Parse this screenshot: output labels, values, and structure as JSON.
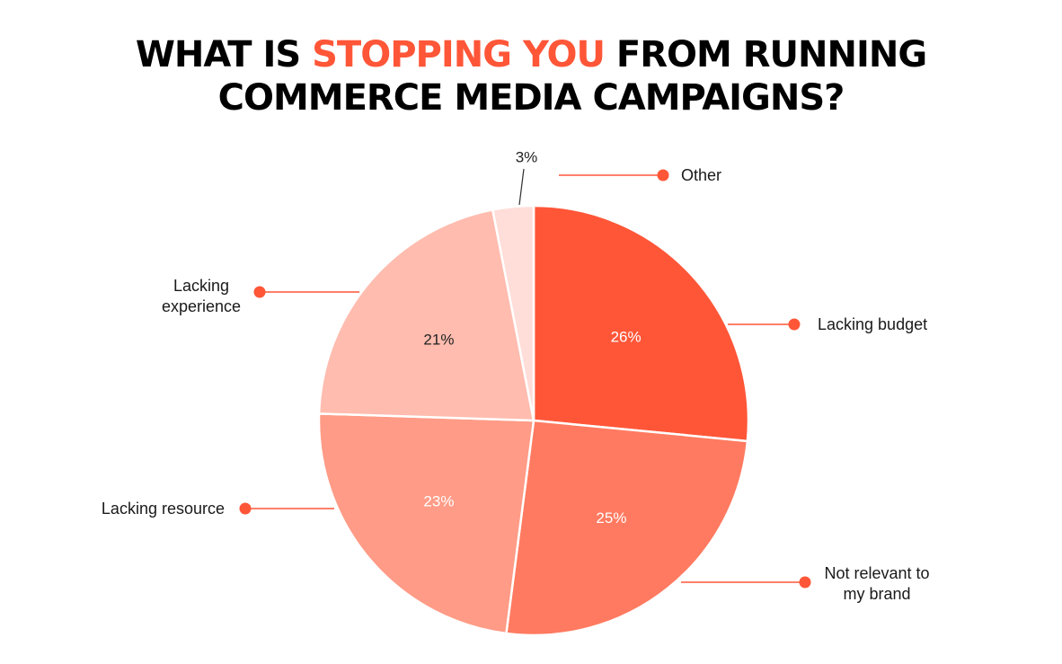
{
  "title": {
    "line1_part1": "WHAT IS ",
    "line1_highlight": "STOPPING YOU",
    "line1_part2": " FROM RUNNING",
    "line2": "COMMERCE MEDIA CAMPAIGNS?",
    "highlight_color": "#ff5638",
    "text_color": "#000000"
  },
  "chart_data": {
    "type": "pie",
    "title": "WHAT IS STOPPING YOU FROM RUNNING COMMERCE MEDIA CAMPAIGNS?",
    "start": "12 o'clock",
    "direction": "clockwise",
    "unit": "%",
    "slices": [
      {
        "label": "Lacking budget",
        "value": 26,
        "value_label": "26%",
        "color": "#ff5638",
        "label_color": "#ffffff"
      },
      {
        "label": "Not relevant to my brand",
        "label_lines": [
          "Not relevant to",
          "my brand"
        ],
        "value": 25,
        "value_label": "25%",
        "color": "#ff7a60",
        "label_color": "#ffffff"
      },
      {
        "label": "Lacking resource",
        "value": 23,
        "value_label": "23%",
        "color": "#ff9b86",
        "label_color": "#ffffff"
      },
      {
        "label": "Lacking experience",
        "label_lines": [
          "Lacking",
          "experience"
        ],
        "value": 21,
        "value_label": "21%",
        "color": "#ffbcaf",
        "label_color": "#222222"
      },
      {
        "label": "Other",
        "value": 3,
        "value_label": "3%",
        "color": "#ffddd8",
        "label_color": "#222222"
      }
    ],
    "leader_color": "#ff5638"
  }
}
